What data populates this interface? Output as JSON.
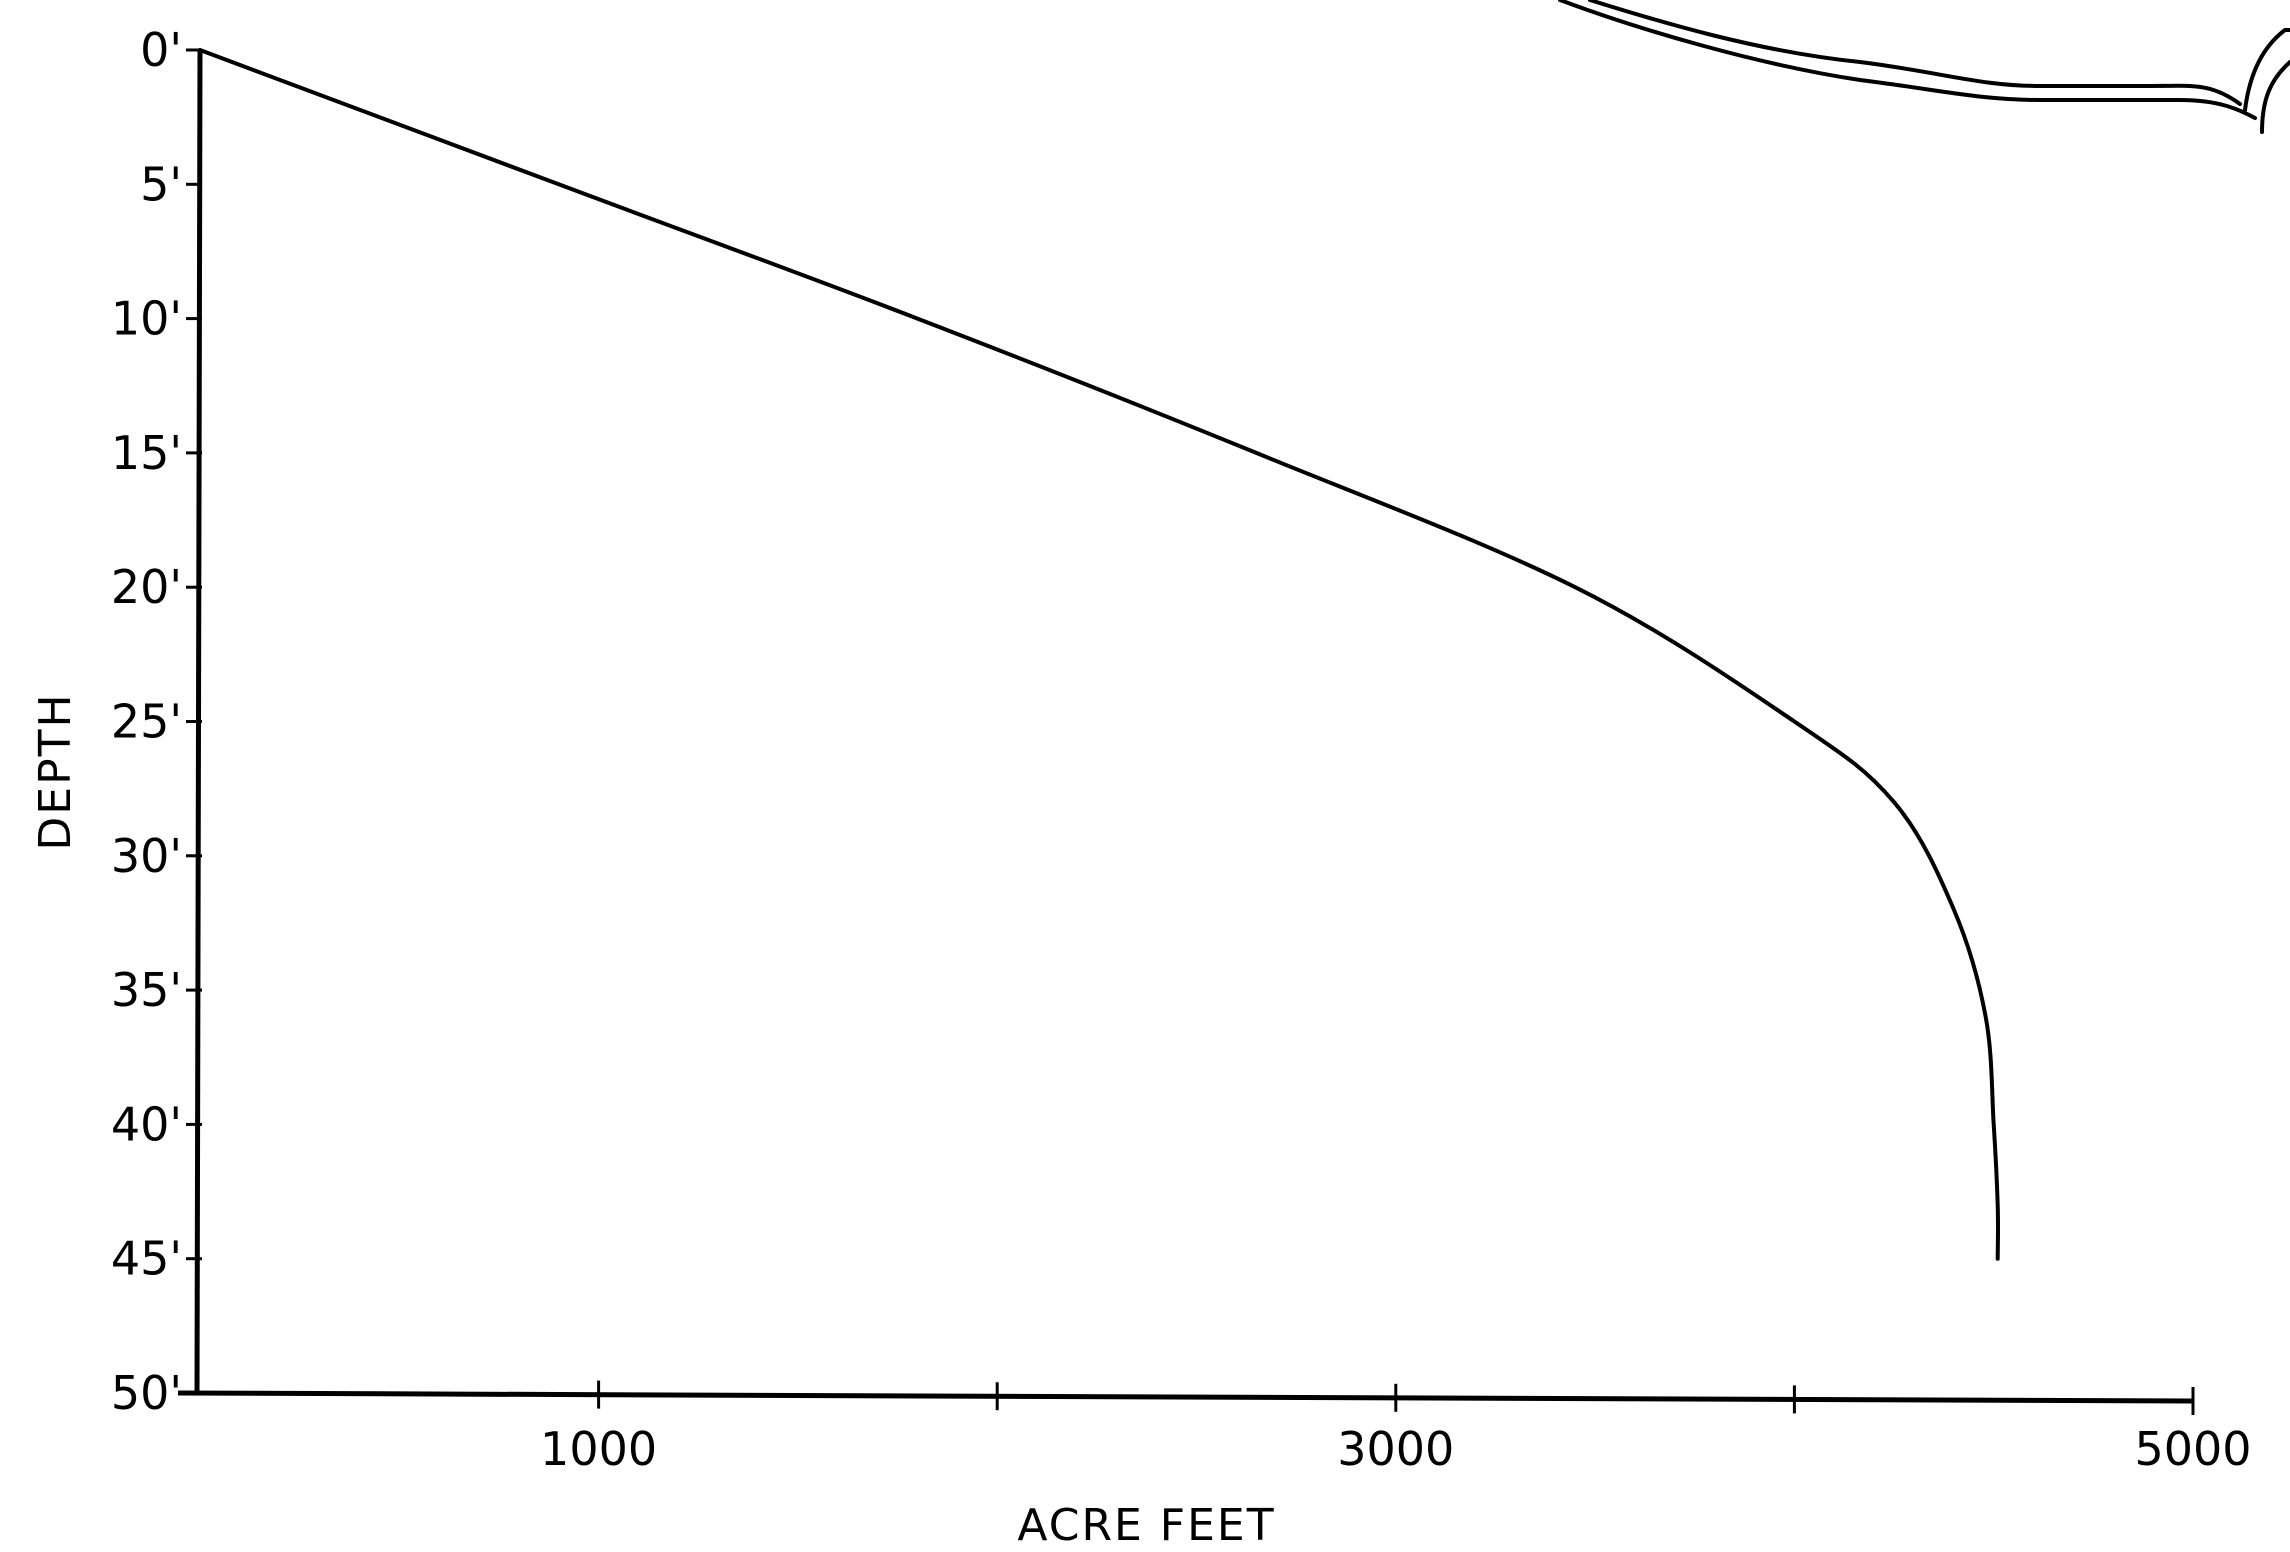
{
  "chart_data": {
    "type": "line",
    "xlabel": "ACRE FEET",
    "ylabel": "DEPTH",
    "xlim": [
      0,
      5000
    ],
    "ylim": [
      0,
      50
    ],
    "y_inverted": true,
    "grid": false,
    "x_ticks": [
      1000,
      2000,
      3000,
      4000,
      5000
    ],
    "x_tick_labels": [
      {
        "value": 1000,
        "label": "1000"
      },
      {
        "value": 3000,
        "label": "3000"
      },
      {
        "value": 5000,
        "label": "5000"
      }
    ],
    "y_tick_labels": [
      {
        "value": 0,
        "label": "0'"
      },
      {
        "value": 5,
        "label": "5'"
      },
      {
        "value": 10,
        "label": "10'"
      },
      {
        "value": 15,
        "label": "15'"
      },
      {
        "value": 20,
        "label": "20'"
      },
      {
        "value": 25,
        "label": "25'"
      },
      {
        "value": 30,
        "label": "30'"
      },
      {
        "value": 35,
        "label": "35'"
      },
      {
        "value": 40,
        "label": "40'"
      },
      {
        "value": 45,
        "label": "45'"
      },
      {
        "value": 50,
        "label": "50'"
      }
    ],
    "series": [
      {
        "x": [
          0,
          900,
          1800,
          2650,
          3450,
          4000,
          4250,
          4400,
          4480,
          4500,
          4510,
          4510
        ],
        "y": [
          0,
          5,
          10,
          15,
          20,
          25,
          28,
          32,
          36,
          40,
          43,
          45
        ]
      }
    ]
  }
}
